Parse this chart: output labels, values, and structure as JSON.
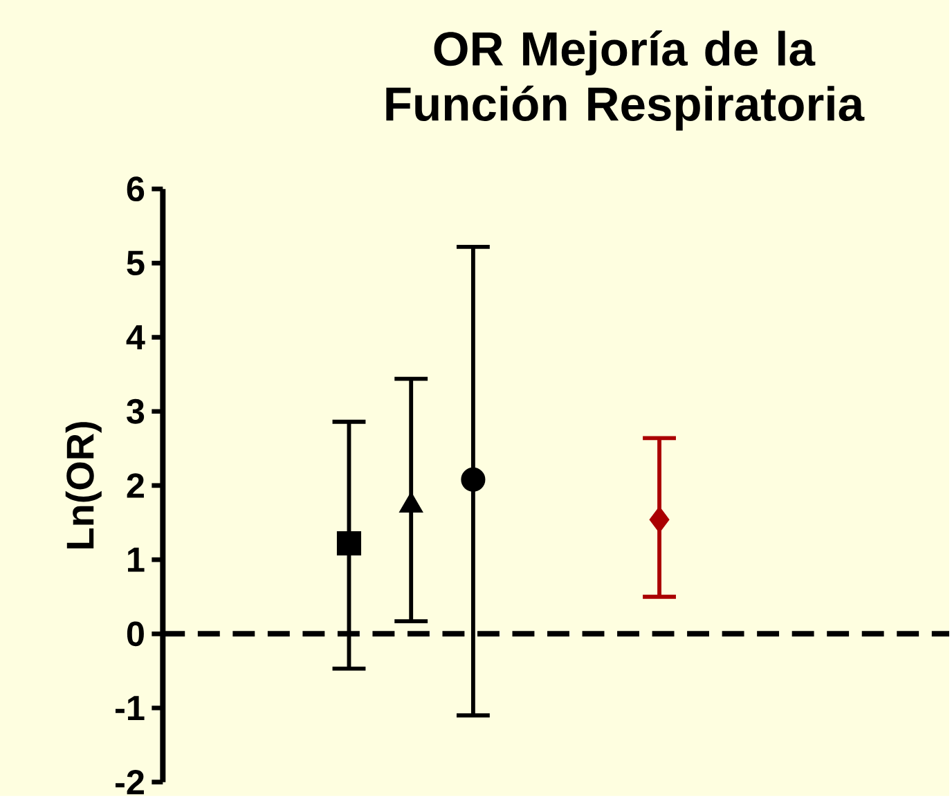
{
  "chart_data": {
    "type": "scatter",
    "title": "OR Mejoría de la Función Respiratoria",
    "ylabel": "Ln(OR)",
    "categories": [
      null,
      null,
      null,
      null,
      null,
      null,
      null,
      null,
      null,
      null,
      null,
      null
    ],
    "series": [
      {
        "color": "#000000",
        "marker": "square",
        "values": [
          null,
          null,
          1.22,
          null,
          null,
          null,
          null,
          null,
          null,
          null,
          null,
          null
        ],
        "errors": [
          null,
          null,
          [
            -0.47,
            2.86
          ],
          null,
          null,
          null,
          null,
          null,
          null,
          null,
          null,
          null
        ]
      },
      {
        "color": "#000000",
        "marker": "triangle",
        "values": [
          null,
          null,
          null,
          1.73,
          null,
          null,
          null,
          null,
          null,
          null,
          null,
          null
        ],
        "errors": [
          null,
          null,
          null,
          [
            0.17,
            3.44
          ],
          null,
          null,
          null,
          null,
          null,
          null,
          null,
          null
        ]
      },
      {
        "color": "#000000",
        "marker": "circle",
        "values": [
          null,
          null,
          null,
          null,
          2.08,
          null,
          null,
          null,
          null,
          null,
          null,
          null
        ],
        "errors": [
          null,
          null,
          null,
          null,
          [
            -1.1,
            5.22
          ],
          null,
          null,
          null,
          null,
          null,
          null,
          null
        ]
      },
      {
        "color": "#aa0000",
        "marker": "diamond",
        "values": [
          null,
          null,
          null,
          null,
          null,
          null,
          null,
          1.54,
          null,
          null,
          null,
          null
        ],
        "errors": [
          null,
          null,
          null,
          null,
          null,
          null,
          null,
          [
            0.5,
            2.64
          ],
          null,
          null,
          null,
          null
        ]
      }
    ],
    "ylim": [
      -2,
      6
    ],
    "yticks": [
      -2,
      -1,
      0,
      1,
      2,
      3,
      4,
      5,
      6
    ],
    "ref_lines": [
      {
        "axis": "y",
        "value": 0,
        "color": "#000000",
        "line_style": "dashed"
      }
    ],
    "tick_labels": "y"
  }
}
